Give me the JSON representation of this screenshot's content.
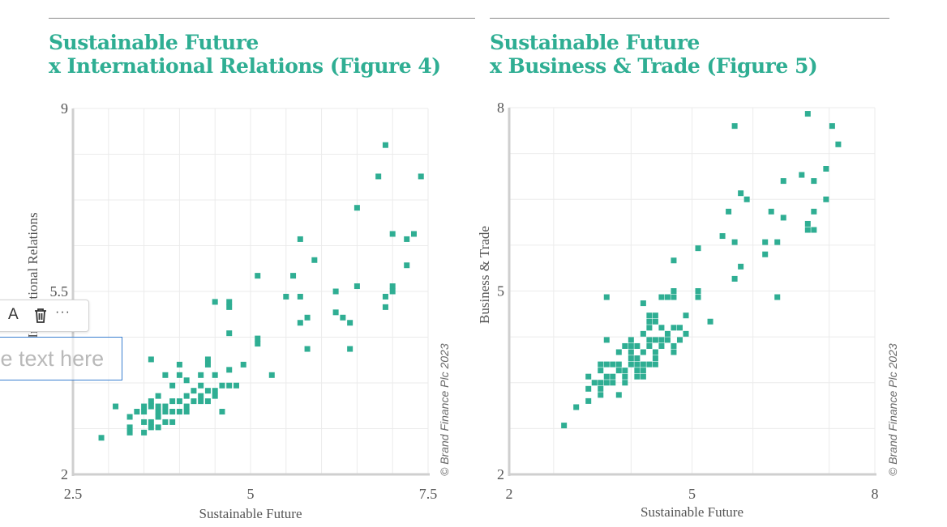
{
  "figures": [
    {
      "title_line1": "Sustainable Future",
      "title_line2": "x International Relations (Figure 4)"
    },
    {
      "title_line1": "Sustainable Future",
      "title_line2": "x Business & Trade (Figure 5)"
    }
  ],
  "overlay": {
    "toolbar": {
      "text_icon_label": "A",
      "more_label": "···",
      "icons": [
        "text-format-icon",
        "trash-icon",
        "more-icon"
      ]
    },
    "textbox": {
      "placeholder": "Type text here",
      "value": ""
    }
  },
  "colors": {
    "accent": "#2fae93",
    "grid": "#ebebeb",
    "axis": "#cfcfcf",
    "text": "#555555"
  },
  "chart_data": [
    {
      "type": "scatter",
      "title": "Sustainable Future x International Relations (Figure 4)",
      "xlabel": "Sustainable Future",
      "ylabel": "International Relations",
      "xlim": [
        2.5,
        7.5
      ],
      "ylim": [
        2,
        9
      ],
      "xticks": [
        "2.5",
        "5",
        "7.5"
      ],
      "yticks": [
        "2",
        "5.5",
        "9"
      ],
      "grid": true,
      "credit": "© Brand Finance Plc 2023",
      "points": [
        [
          2.9,
          2.7
        ],
        [
          3.1,
          3.3
        ],
        [
          3.3,
          3.1
        ],
        [
          3.3,
          2.9
        ],
        [
          3.3,
          2.8
        ],
        [
          3.4,
          3.2
        ],
        [
          3.5,
          3.3
        ],
        [
          3.5,
          3.2
        ],
        [
          3.5,
          3.0
        ],
        [
          3.5,
          2.8
        ],
        [
          3.6,
          3.4
        ],
        [
          3.6,
          3.3
        ],
        [
          3.6,
          3.0
        ],
        [
          3.6,
          2.9
        ],
        [
          3.6,
          4.2
        ],
        [
          3.7,
          3.5
        ],
        [
          3.7,
          3.3
        ],
        [
          3.7,
          3.2
        ],
        [
          3.7,
          3.1
        ],
        [
          3.7,
          2.9
        ],
        [
          3.8,
          3.9
        ],
        [
          3.8,
          3.3
        ],
        [
          3.8,
          3.2
        ],
        [
          3.8,
          3.0
        ],
        [
          3.9,
          3.7
        ],
        [
          3.9,
          3.4
        ],
        [
          3.9,
          3.2
        ],
        [
          3.9,
          3.0
        ],
        [
          4.0,
          4.1
        ],
        [
          4.0,
          3.9
        ],
        [
          4.0,
          3.4
        ],
        [
          4.0,
          3.2
        ],
        [
          4.1,
          3.8
        ],
        [
          4.1,
          3.5
        ],
        [
          4.1,
          3.3
        ],
        [
          4.1,
          3.2
        ],
        [
          4.2,
          3.6
        ],
        [
          4.2,
          3.4
        ],
        [
          4.3,
          3.9
        ],
        [
          4.3,
          3.7
        ],
        [
          4.3,
          3.5
        ],
        [
          4.3,
          3.4
        ],
        [
          4.4,
          4.2
        ],
        [
          4.4,
          4.1
        ],
        [
          4.4,
          3.6
        ],
        [
          4.4,
          3.4
        ],
        [
          4.5,
          5.3
        ],
        [
          4.5,
          3.9
        ],
        [
          4.5,
          3.6
        ],
        [
          4.5,
          3.5
        ],
        [
          4.6,
          3.7
        ],
        [
          4.6,
          3.2
        ],
        [
          4.7,
          5.3
        ],
        [
          4.7,
          5.2
        ],
        [
          4.7,
          4.7
        ],
        [
          4.7,
          4.0
        ],
        [
          4.7,
          3.7
        ],
        [
          4.8,
          3.7
        ],
        [
          4.9,
          4.1
        ],
        [
          5.1,
          5.8
        ],
        [
          5.1,
          4.6
        ],
        [
          5.1,
          4.5
        ],
        [
          5.3,
          3.9
        ],
        [
          5.5,
          5.4
        ],
        [
          5.6,
          5.8
        ],
        [
          5.7,
          6.5
        ],
        [
          5.7,
          5.4
        ],
        [
          5.7,
          4.9
        ],
        [
          5.8,
          5.0
        ],
        [
          5.8,
          4.4
        ],
        [
          5.9,
          6.1
        ],
        [
          6.2,
          5.5
        ],
        [
          6.2,
          5.1
        ],
        [
          6.3,
          5.0
        ],
        [
          6.4,
          4.9
        ],
        [
          6.4,
          4.4
        ],
        [
          6.5,
          7.1
        ],
        [
          6.5,
          5.6
        ],
        [
          6.8,
          7.7
        ],
        [
          6.9,
          8.3
        ],
        [
          6.9,
          5.4
        ],
        [
          6.9,
          5.2
        ],
        [
          7.0,
          6.6
        ],
        [
          7.0,
          5.6
        ],
        [
          7.0,
          5.5
        ],
        [
          7.2,
          6.5
        ],
        [
          7.2,
          6.0
        ],
        [
          7.3,
          6.6
        ],
        [
          7.4,
          7.7
        ]
      ]
    },
    {
      "type": "scatter",
      "title": "Sustainable Future x Business & Trade (Figure 5)",
      "xlabel": "Sustainable Future",
      "ylabel": "Business & Trade",
      "xlim": [
        2,
        8
      ],
      "ylim": [
        2,
        8
      ],
      "xticks": [
        "2",
        "5",
        "8"
      ],
      "yticks": [
        "2",
        "5",
        "8"
      ],
      "grid": true,
      "credit": "© Brand Finance Plc 2023",
      "points": [
        [
          2.9,
          2.8
        ],
        [
          3.1,
          3.1
        ],
        [
          3.3,
          3.2
        ],
        [
          3.3,
          3.4
        ],
        [
          3.3,
          3.6
        ],
        [
          3.4,
          3.5
        ],
        [
          3.5,
          3.8
        ],
        [
          3.5,
          3.7
        ],
        [
          3.5,
          3.5
        ],
        [
          3.5,
          3.4
        ],
        [
          3.5,
          3.3
        ],
        [
          3.6,
          4.2
        ],
        [
          3.6,
          4.9
        ],
        [
          3.6,
          3.8
        ],
        [
          3.6,
          3.6
        ],
        [
          3.6,
          3.5
        ],
        [
          3.7,
          3.8
        ],
        [
          3.7,
          3.6
        ],
        [
          3.7,
          3.5
        ],
        [
          3.8,
          4.0
        ],
        [
          3.8,
          3.8
        ],
        [
          3.8,
          3.7
        ],
        [
          3.8,
          3.3
        ],
        [
          3.9,
          4.1
        ],
        [
          3.9,
          3.7
        ],
        [
          3.9,
          3.6
        ],
        [
          3.9,
          3.5
        ],
        [
          4.0,
          4.2
        ],
        [
          4.0,
          4.1
        ],
        [
          4.0,
          4.0
        ],
        [
          4.0,
          3.9
        ],
        [
          4.0,
          3.8
        ],
        [
          4.1,
          4.1
        ],
        [
          4.1,
          3.9
        ],
        [
          4.1,
          3.8
        ],
        [
          4.1,
          3.7
        ],
        [
          4.1,
          3.6
        ],
        [
          4.2,
          4.8
        ],
        [
          4.2,
          4.3
        ],
        [
          4.2,
          4.0
        ],
        [
          4.2,
          3.8
        ],
        [
          4.2,
          3.7
        ],
        [
          4.2,
          3.6
        ],
        [
          4.3,
          4.6
        ],
        [
          4.3,
          4.5
        ],
        [
          4.3,
          4.4
        ],
        [
          4.3,
          4.2
        ],
        [
          4.3,
          4.1
        ],
        [
          4.3,
          3.8
        ],
        [
          4.4,
          4.6
        ],
        [
          4.4,
          4.5
        ],
        [
          4.4,
          4.2
        ],
        [
          4.4,
          4.0
        ],
        [
          4.4,
          3.9
        ],
        [
          4.4,
          3.8
        ],
        [
          4.5,
          4.9
        ],
        [
          4.5,
          4.4
        ],
        [
          4.5,
          4.2
        ],
        [
          4.5,
          4.1
        ],
        [
          4.6,
          4.9
        ],
        [
          4.6,
          4.3
        ],
        [
          4.6,
          4.2
        ],
        [
          4.7,
          5.5
        ],
        [
          4.7,
          5.0
        ],
        [
          4.7,
          4.9
        ],
        [
          4.7,
          4.4
        ],
        [
          4.7,
          4.1
        ],
        [
          4.7,
          4.0
        ],
        [
          4.8,
          4.4
        ],
        [
          4.8,
          4.2
        ],
        [
          4.9,
          4.6
        ],
        [
          4.9,
          4.3
        ],
        [
          5.1,
          5.7
        ],
        [
          5.1,
          5.0
        ],
        [
          5.1,
          4.9
        ],
        [
          5.3,
          4.5
        ],
        [
          5.5,
          5.9
        ],
        [
          5.6,
          6.3
        ],
        [
          5.7,
          7.7
        ],
        [
          5.7,
          5.8
        ],
        [
          5.7,
          5.2
        ],
        [
          5.8,
          6.6
        ],
        [
          5.8,
          5.4
        ],
        [
          5.9,
          6.5
        ],
        [
          6.2,
          5.8
        ],
        [
          6.2,
          5.6
        ],
        [
          6.3,
          6.3
        ],
        [
          6.4,
          5.8
        ],
        [
          6.4,
          4.9
        ],
        [
          6.5,
          6.8
        ],
        [
          6.5,
          6.2
        ],
        [
          6.8,
          6.9
        ],
        [
          6.9,
          7.9
        ],
        [
          6.9,
          6.1
        ],
        [
          6.9,
          6.0
        ],
        [
          7.0,
          6.0
        ],
        [
          7.0,
          6.8
        ],
        [
          7.0,
          6.3
        ],
        [
          7.2,
          6.5
        ],
        [
          7.2,
          7.0
        ],
        [
          7.3,
          7.7
        ],
        [
          7.4,
          7.4
        ]
      ]
    }
  ]
}
